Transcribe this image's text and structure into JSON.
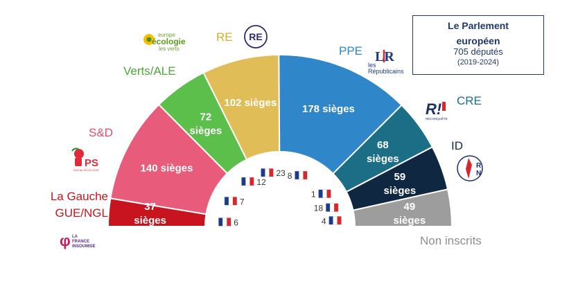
{
  "info_box": {
    "title_line1": "Le Parlement",
    "title_line2": "européen",
    "members": "705 députés",
    "period": "(2019-2024)"
  },
  "logos": {
    "ecologie": [
      "europe",
      "écologie",
      "les verts"
    ],
    "re": "RE",
    "lr_mark": "LR",
    "lr_text": [
      "les",
      "Républicains"
    ],
    "reconquete_mark": "R!",
    "reconquete_text": "RECONQUÊTE",
    "rn": [
      "R",
      "N"
    ],
    "ps_mark": "PS",
    "ps_text": "SOCIAL ÉCOLOGIE",
    "lfi_text": [
      "LA",
      "FRANCE",
      "INSOUMISE"
    ]
  },
  "chart_data": {
    "type": "pie",
    "title": "Le Parlement européen",
    "subtitle": "705 députés (2019-2024)",
    "series": [
      {
        "group": "La Gauche GUE/NGL",
        "label_lines": [
          "La Gauche",
          "GUE/NGL"
        ],
        "seats": 37,
        "seats_label": "37 sièges",
        "french_seats": 6,
        "color": "#c8141e",
        "label_color": "#c8141e"
      },
      {
        "group": "S&D",
        "label_lines": [
          "S&D"
        ],
        "seats": 140,
        "seats_label": "140 sièges",
        "french_seats": 7,
        "color": "#e95b7b",
        "label_color": "#e0506e"
      },
      {
        "group": "Verts/ALE",
        "label_lines": [
          "Verts/ALE"
        ],
        "seats": 72,
        "seats_label": "72 sièges",
        "french_seats": 12,
        "color": "#5cbf4c",
        "label_color": "#4aa83a"
      },
      {
        "group": "RE",
        "label_lines": [
          "RE"
        ],
        "seats": 102,
        "seats_label": "102 sièges",
        "french_seats": 23,
        "color": "#e0bd57",
        "label_color": "#d6ab2a"
      },
      {
        "group": "PPE",
        "label_lines": [
          "PPE"
        ],
        "seats": 178,
        "seats_label": "178 sièges",
        "french_seats": 8,
        "color": "#2f86c8",
        "label_color": "#2f86c8"
      },
      {
        "group": "CRE",
        "label_lines": [
          "CRE"
        ],
        "seats": 68,
        "seats_label": "68 sièges",
        "french_seats": 1,
        "color": "#1c6d86",
        "label_color": "#1c6d86"
      },
      {
        "group": "ID",
        "label_lines": [
          "ID"
        ],
        "seats": 59,
        "seats_label": "59 sièges",
        "french_seats": 18,
        "color": "#0f2740",
        "label_color": "#0f2740"
      },
      {
        "group": "Non inscrits",
        "label_lines": [
          "Non inscrits"
        ],
        "seats": 49,
        "seats_label": "49 sièges",
        "french_seats": 4,
        "color": "#9d9d9d",
        "label_color": "#8e8e8e"
      }
    ],
    "total_seats": 705,
    "french_seats_unit": "députés français (drapeau)",
    "layout": "hemicycle"
  }
}
